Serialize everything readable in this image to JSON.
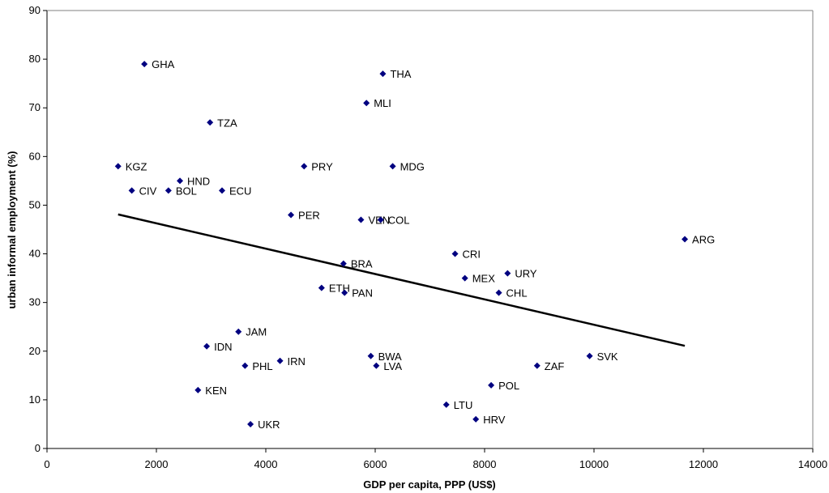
{
  "chart_data": {
    "type": "scatter",
    "title": "",
    "xlabel": "GDP per capita, PPP (US$)",
    "ylabel": "urban informal employment (%)",
    "xlim": [
      0,
      14000
    ],
    "ylim": [
      0,
      90
    ],
    "xticks": [
      0,
      2000,
      4000,
      6000,
      8000,
      10000,
      12000,
      14000
    ],
    "yticks": [
      0,
      10,
      20,
      30,
      40,
      50,
      60,
      70,
      80,
      90
    ],
    "grid": false,
    "legend": "none",
    "marker_color": "#000080",
    "points": [
      {
        "label": "GHA",
        "x": 1780,
        "y": 79
      },
      {
        "label": "THA",
        "x": 6140,
        "y": 77
      },
      {
        "label": "MLI",
        "x": 5840,
        "y": 71
      },
      {
        "label": "TZA",
        "x": 2980,
        "y": 67
      },
      {
        "label": "KGZ",
        "x": 1300,
        "y": 58
      },
      {
        "label": "PRY",
        "x": 4700,
        "y": 58
      },
      {
        "label": "MDG",
        "x": 6320,
        "y": 58
      },
      {
        "label": "HND",
        "x": 2430,
        "y": 55
      },
      {
        "label": "CIV",
        "x": 1550,
        "y": 53
      },
      {
        "label": "BOL",
        "x": 2220,
        "y": 53
      },
      {
        "label": "ECU",
        "x": 3200,
        "y": 53
      },
      {
        "label": "PER",
        "x": 4460,
        "y": 48
      },
      {
        "label": "VEN",
        "x": 5740,
        "y": 47
      },
      {
        "label": "COL",
        "x": 6100,
        "y": 47
      },
      {
        "label": "ARG",
        "x": 11660,
        "y": 43
      },
      {
        "label": "CRI",
        "x": 7460,
        "y": 40
      },
      {
        "label": "BRA",
        "x": 5420,
        "y": 38
      },
      {
        "label": "URY",
        "x": 8420,
        "y": 36
      },
      {
        "label": "MEX",
        "x": 7640,
        "y": 35
      },
      {
        "label": "ETH",
        "x": 5020,
        "y": 33
      },
      {
        "label": "PAN",
        "x": 5440,
        "y": 32
      },
      {
        "label": "CHL",
        "x": 8260,
        "y": 32
      },
      {
        "label": "JAM",
        "x": 3500,
        "y": 24
      },
      {
        "label": "IDN",
        "x": 2920,
        "y": 21
      },
      {
        "label": "BWA",
        "x": 5920,
        "y": 19
      },
      {
        "label": "SVK",
        "x": 9920,
        "y": 19
      },
      {
        "label": "IRN",
        "x": 4260,
        "y": 18
      },
      {
        "label": "PHL",
        "x": 3620,
        "y": 17
      },
      {
        "label": "LVA",
        "x": 6020,
        "y": 17
      },
      {
        "label": "ZAF",
        "x": 8960,
        "y": 17
      },
      {
        "label": "POL",
        "x": 8120,
        "y": 13
      },
      {
        "label": "KEN",
        "x": 2760,
        "y": 12
      },
      {
        "label": "LTU",
        "x": 7300,
        "y": 9
      },
      {
        "label": "HRV",
        "x": 7840,
        "y": 6
      },
      {
        "label": "UKR",
        "x": 3720,
        "y": 5
      }
    ],
    "trendline": {
      "x": [
        1300,
        11660
      ],
      "y": [
        48.1,
        21.1
      ]
    }
  }
}
